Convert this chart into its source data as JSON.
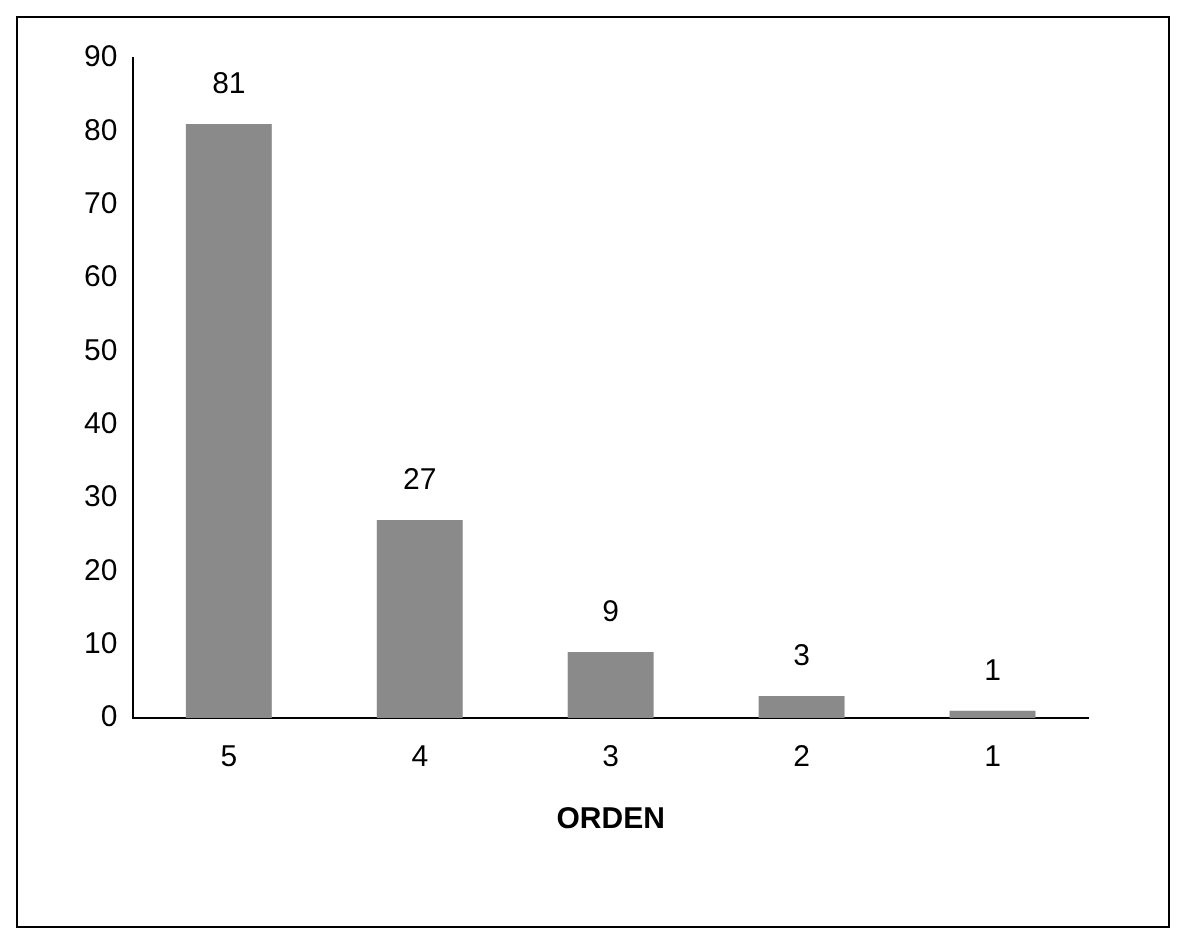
{
  "chart_data": {
    "type": "bar",
    "categories": [
      "5",
      "4",
      "3",
      "2",
      "1"
    ],
    "values": [
      81,
      27,
      9,
      3,
      1
    ],
    "color": "#8a8a8a",
    "xlabel": "ORDEN",
    "ylim": [
      0,
      90
    ],
    "yticks": [
      0,
      10,
      20,
      30,
      40,
      50,
      60,
      70,
      80,
      90
    ],
    "grid": false,
    "legend": false,
    "data_labels": true
  }
}
